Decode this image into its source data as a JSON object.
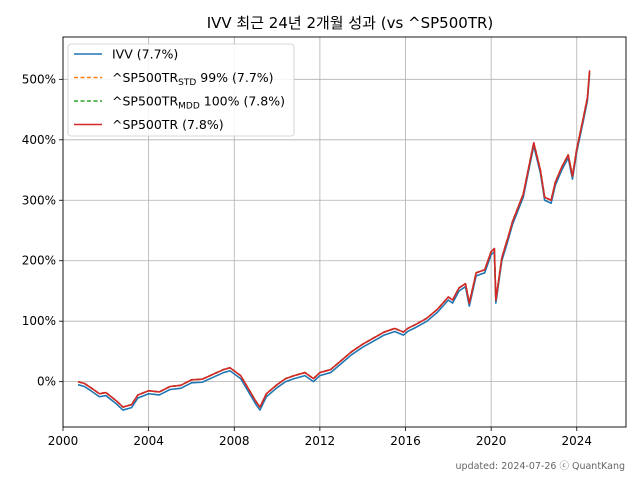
{
  "chart_data": {
    "type": "line",
    "title": "IVV 최근 24년 2개월 성과 (vs ^SP500TR)",
    "xlim": [
      2000.0,
      2026.3
    ],
    "ylim": [
      -0.75,
      5.7
    ],
    "x_ticks": [
      2000,
      2004,
      2008,
      2012,
      2016,
      2020,
      2024
    ],
    "x_tick_labels": [
      "2000",
      "2004",
      "2008",
      "2012",
      "2016",
      "2020",
      "2024"
    ],
    "y_ticks": [
      0,
      1,
      2,
      3,
      4,
      5
    ],
    "y_tick_labels": [
      "0%",
      "100%",
      "200%",
      "300%",
      "400%",
      "500%"
    ],
    "grid": true,
    "legend_position": "top-left",
    "legend": [
      {
        "main": "IVV (7.7%)",
        "pre": "",
        "sub": "",
        "post": "",
        "color": "#1f77b4",
        "dash": "solid"
      },
      {
        "main": "",
        "pre": "^SP500TR",
        "sub": "STD",
        "post": " 99% (7.7%)",
        "color": "#ff7f0e",
        "dash": "dashed"
      },
      {
        "main": "",
        "pre": "^SP500TR",
        "sub": "MDD",
        "post": " 100% (7.8%)",
        "color": "#2ca02c",
        "dash": "dashed"
      },
      {
        "main": "^SP500TR (7.8%)",
        "pre": "",
        "sub": "",
        "post": "",
        "color": "#d62728",
        "dash": "solid"
      }
    ],
    "x": [
      2000.7,
      2001.0,
      2001.3,
      2001.7,
      2002.0,
      2002.5,
      2002.8,
      2003.2,
      2003.5,
      2004.0,
      2004.5,
      2005.0,
      2005.5,
      2006.0,
      2006.5,
      2007.0,
      2007.5,
      2007.8,
      2008.3,
      2008.8,
      2009.0,
      2009.2,
      2009.5,
      2010.0,
      2010.4,
      2010.8,
      2011.3,
      2011.7,
      2012.0,
      2012.5,
      2013.0,
      2013.5,
      2014.0,
      2014.5,
      2015.0,
      2015.5,
      2015.9,
      2016.1,
      2016.5,
      2017.0,
      2017.5,
      2018.0,
      2018.2,
      2018.5,
      2018.8,
      2018.98,
      2019.3,
      2019.7,
      2020.0,
      2020.15,
      2020.22,
      2020.5,
      2020.8,
      2021.0,
      2021.5,
      2021.99,
      2022.3,
      2022.5,
      2022.8,
      2023.0,
      2023.3,
      2023.6,
      2023.8,
      2024.0,
      2024.3,
      2024.5,
      2024.6
    ],
    "series": [
      {
        "name": "IVV (7.7%)",
        "color": "#1f77b4",
        "dash": "solid",
        "offset": -0.05,
        "values": [
          0.0,
          -0.03,
          -0.1,
          -0.2,
          -0.18,
          -0.32,
          -0.42,
          -0.38,
          -0.22,
          -0.15,
          -0.17,
          -0.08,
          -0.06,
          0.03,
          0.04,
          0.12,
          0.2,
          0.23,
          0.1,
          -0.2,
          -0.32,
          -0.42,
          -0.2,
          -0.05,
          0.05,
          0.1,
          0.15,
          0.05,
          0.15,
          0.2,
          0.35,
          0.5,
          0.62,
          0.72,
          0.82,
          0.88,
          0.82,
          0.88,
          0.95,
          1.05,
          1.2,
          1.4,
          1.35,
          1.55,
          1.62,
          1.3,
          1.8,
          1.85,
          2.15,
          2.2,
          1.35,
          2.05,
          2.4,
          2.65,
          3.1,
          3.95,
          3.5,
          3.05,
          3.0,
          3.3,
          3.55,
          3.75,
          3.4,
          3.85,
          4.35,
          4.7,
          5.15
        ]
      },
      {
        "name": "^SP500TR STD 99% (7.7%)",
        "color": "#ff7f0e",
        "dash": "dashed",
        "offset": 0.0,
        "values": [
          0.0,
          -0.03,
          -0.1,
          -0.2,
          -0.18,
          -0.32,
          -0.42,
          -0.38,
          -0.22,
          -0.15,
          -0.17,
          -0.08,
          -0.06,
          0.03,
          0.04,
          0.12,
          0.2,
          0.23,
          0.1,
          -0.2,
          -0.32,
          -0.42,
          -0.2,
          -0.05,
          0.05,
          0.1,
          0.15,
          0.05,
          0.15,
          0.2,
          0.35,
          0.5,
          0.62,
          0.72,
          0.82,
          0.88,
          0.82,
          0.88,
          0.95,
          1.05,
          1.2,
          1.4,
          1.35,
          1.55,
          1.62,
          1.3,
          1.8,
          1.85,
          2.15,
          2.2,
          1.35,
          2.05,
          2.4,
          2.65,
          3.1,
          3.95,
          3.5,
          3.05,
          3.0,
          3.3,
          3.55,
          3.75,
          3.4,
          3.85,
          4.35,
          4.7,
          5.15
        ]
      },
      {
        "name": "^SP500TR MDD 100% (7.8%)",
        "color": "#2ca02c",
        "dash": "dashed",
        "offset": 0.0,
        "values": [
          0.0,
          -0.03,
          -0.1,
          -0.2,
          -0.18,
          -0.32,
          -0.42,
          -0.38,
          -0.22,
          -0.15,
          -0.17,
          -0.08,
          -0.06,
          0.03,
          0.04,
          0.12,
          0.2,
          0.23,
          0.1,
          -0.2,
          -0.32,
          -0.42,
          -0.2,
          -0.05,
          0.05,
          0.1,
          0.15,
          0.05,
          0.15,
          0.2,
          0.35,
          0.5,
          0.62,
          0.72,
          0.82,
          0.88,
          0.82,
          0.88,
          0.95,
          1.05,
          1.2,
          1.4,
          1.35,
          1.55,
          1.62,
          1.3,
          1.8,
          1.85,
          2.15,
          2.2,
          1.35,
          2.05,
          2.4,
          2.65,
          3.1,
          3.95,
          3.5,
          3.05,
          3.0,
          3.3,
          3.55,
          3.75,
          3.4,
          3.85,
          4.35,
          4.7,
          5.15
        ]
      },
      {
        "name": "^SP500TR (7.8%)",
        "color": "#d62728",
        "dash": "solid",
        "offset": 0.0,
        "values": [
          0.0,
          -0.03,
          -0.1,
          -0.2,
          -0.18,
          -0.32,
          -0.42,
          -0.38,
          -0.22,
          -0.15,
          -0.17,
          -0.08,
          -0.06,
          0.03,
          0.04,
          0.12,
          0.2,
          0.23,
          0.1,
          -0.2,
          -0.32,
          -0.42,
          -0.2,
          -0.05,
          0.05,
          0.1,
          0.15,
          0.05,
          0.15,
          0.2,
          0.35,
          0.5,
          0.62,
          0.72,
          0.82,
          0.88,
          0.82,
          0.88,
          0.95,
          1.05,
          1.2,
          1.4,
          1.35,
          1.55,
          1.62,
          1.3,
          1.8,
          1.85,
          2.15,
          2.2,
          1.35,
          2.05,
          2.4,
          2.65,
          3.1,
          3.95,
          3.5,
          3.05,
          3.0,
          3.3,
          3.55,
          3.75,
          3.4,
          3.85,
          4.35,
          4.7,
          5.15
        ]
      }
    ]
  },
  "footer": {
    "credit": "updated: 2024-07-26 ⓒ QuantKang"
  }
}
